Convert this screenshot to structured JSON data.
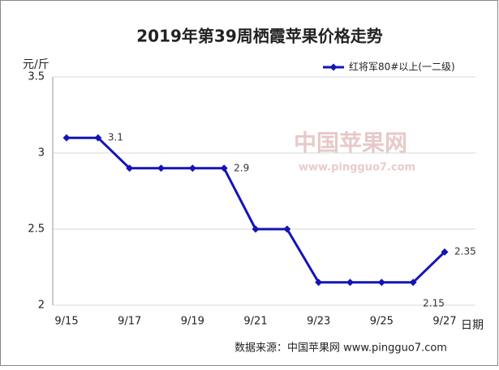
{
  "chart_data": {
    "type": "line",
    "title": "2019年第39周栖霞苹果价格走势",
    "y_label": "元/斤",
    "x_label": "日期",
    "source": "数据来源：中国苹果网 www.pingguo7.com",
    "watermark": [
      "中国苹果网",
      "www.pingguo7.com"
    ],
    "categories": [
      "9/15",
      null,
      "9/17",
      null,
      "9/19",
      null,
      "9/21",
      null,
      "9/23",
      null,
      "9/25",
      null,
      "9/27"
    ],
    "series": [
      {
        "name": "红将军80#以上(一二级)",
        "color": "#1414b8",
        "values": [
          3.1,
          3.1,
          2.9,
          2.9,
          2.9,
          2.9,
          2.5,
          2.5,
          2.15,
          2.15,
          2.15,
          2.15,
          2.35
        ],
        "value_labels": [
          null,
          "3.1",
          null,
          null,
          null,
          "2.9",
          null,
          null,
          null,
          null,
          null,
          "2.15",
          "2.35"
        ]
      }
    ],
    "ylim": [
      2,
      3.5
    ],
    "yticks": [
      2,
      2.5,
      3,
      3.5
    ],
    "grid": true,
    "legend": "top-right"
  }
}
